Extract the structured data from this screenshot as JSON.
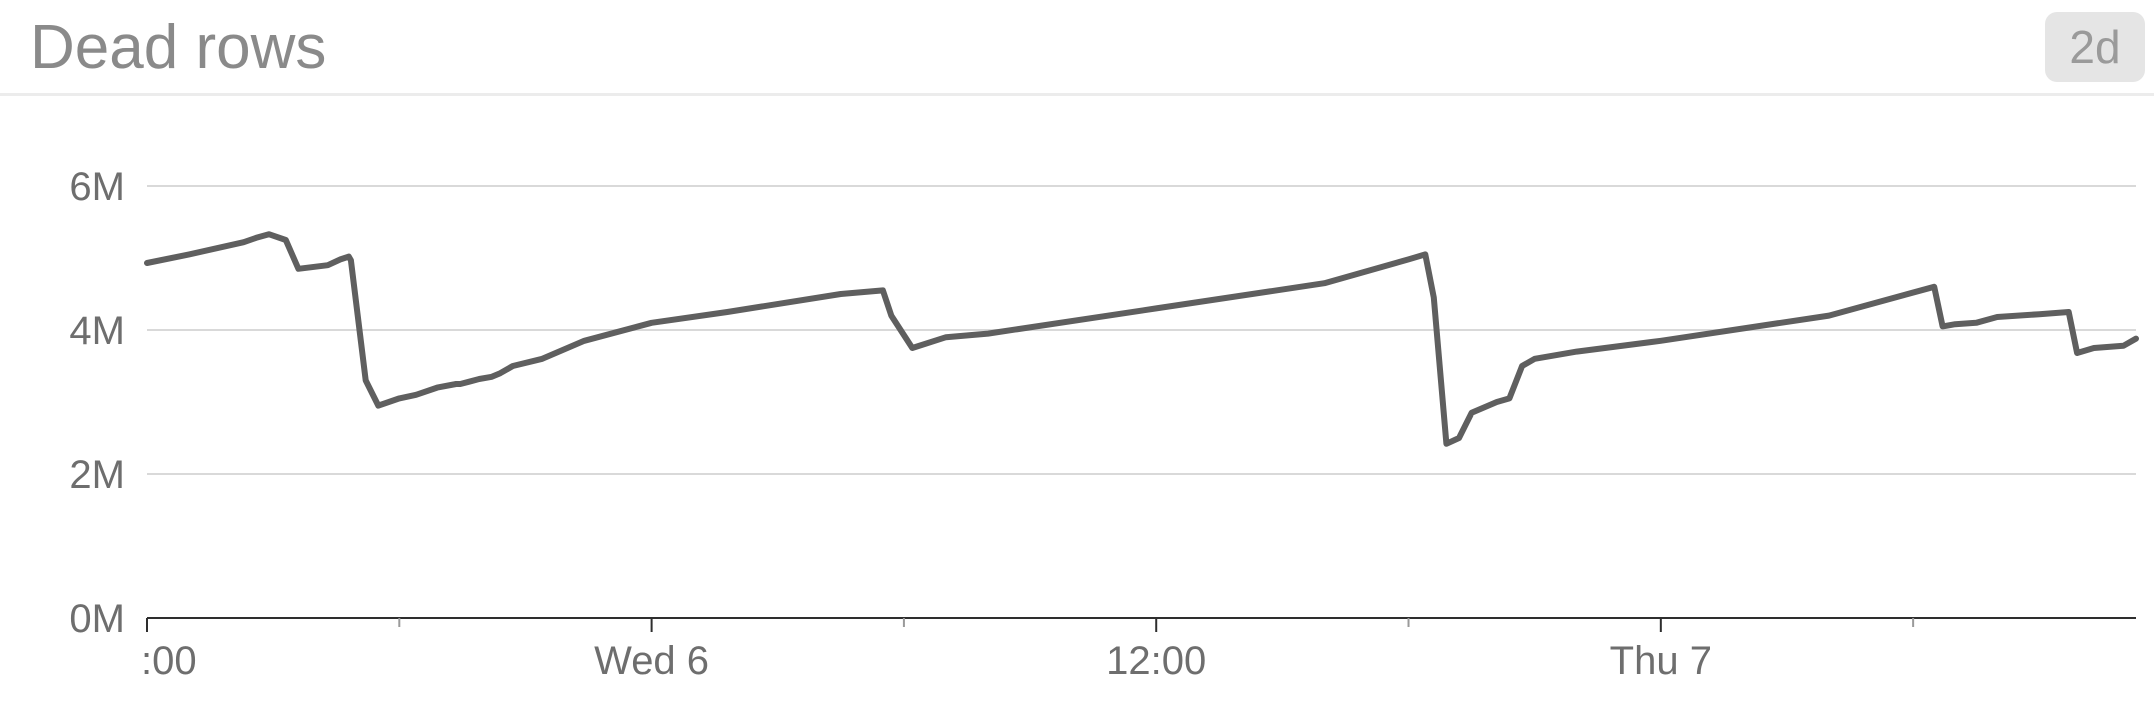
{
  "panel": {
    "title": "Dead rows",
    "range_label": "2d"
  },
  "chart_data": {
    "type": "line",
    "title": "Dead rows",
    "xlabel": "",
    "ylabel": "",
    "x_tick_labels": [
      ":00",
      "Wed 6",
      "12:00",
      "Thu 7"
    ],
    "x_tick_positions_hours": [
      0,
      12,
      24,
      36
    ],
    "x_minor_tick_hours": [
      6,
      18,
      30,
      42
    ],
    "xlim_hours": [
      0,
      47.3
    ],
    "y_tick_labels": [
      "0M",
      "2M",
      "4M",
      "6M"
    ],
    "y_tick_values": [
      0,
      2,
      4,
      6
    ],
    "ylim": [
      0,
      6.6
    ],
    "y_unit": "M",
    "grid": true,
    "line_color": "#5f5f5f",
    "series": [
      {
        "x_hours": [
          0,
          1,
          2.3,
          2.6,
          2.9,
          3.3,
          3.6,
          4.3,
          4.6,
          4.8,
          4.85,
          5.2,
          5.5,
          6.0,
          6.4,
          6.9,
          7.35,
          7.45,
          7.65,
          7.9,
          8.2,
          8.4,
          8.7,
          9.4,
          10.4,
          12.0,
          13.8,
          16.5,
          17.5,
          17.7,
          18.2,
          19.0,
          20.0,
          24.0,
          28.0,
          30.0,
          30.4,
          30.6,
          30.9,
          31.2,
          31.5,
          32.1,
          32.4,
          32.7,
          33.0,
          34.0,
          36.0,
          40.0,
          42.5,
          42.7,
          43.0,
          43.5,
          44.0,
          45.0,
          45.7,
          45.9,
          46.3,
          47.0,
          47.3
        ],
        "y_values": [
          4.93,
          5.05,
          5.22,
          5.28,
          5.33,
          5.25,
          4.85,
          4.9,
          4.98,
          5.02,
          4.97,
          3.3,
          2.95,
          3.05,
          3.1,
          3.2,
          3.25,
          3.25,
          3.28,
          3.32,
          3.35,
          3.4,
          3.5,
          3.6,
          3.85,
          4.1,
          4.25,
          4.5,
          4.55,
          4.2,
          3.75,
          3.9,
          3.95,
          4.3,
          4.65,
          4.98,
          5.05,
          4.45,
          2.42,
          2.5,
          2.85,
          3.0,
          3.05,
          3.5,
          3.6,
          3.7,
          3.85,
          4.2,
          4.6,
          4.05,
          4.08,
          4.1,
          4.18,
          4.22,
          4.25,
          3.68,
          3.75,
          3.78,
          3.88
        ]
      }
    ]
  }
}
